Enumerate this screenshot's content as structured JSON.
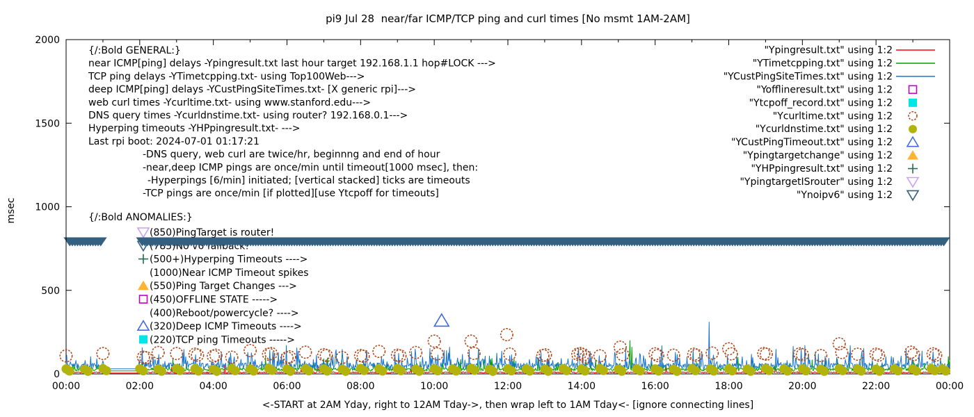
{
  "title": "pi9 Jul 28  near/far ICMP/TCP ping and curl times [No msmt 1AM-2AM]",
  "axes": {
    "ylabel": "msec",
    "xlabel": "<-START at 2AM Yday, right to 12AM Tday->, then wrap left to 1AM Tday<- [ignore connecting lines]",
    "x_ticks": [
      {
        "h": 0,
        "label": "00:00"
      },
      {
        "h": 2,
        "label": "02:00"
      },
      {
        "h": 4,
        "label": "04:00"
      },
      {
        "h": 6,
        "label": "06:00"
      },
      {
        "h": 8,
        "label": "08:00"
      },
      {
        "h": 10,
        "label": "10:00"
      },
      {
        "h": 12,
        "label": "12:00"
      },
      {
        "h": 14,
        "label": "14:00"
      },
      {
        "h": 16,
        "label": "16:00"
      },
      {
        "h": 18,
        "label": "18:00"
      },
      {
        "h": 20,
        "label": "20:00"
      },
      {
        "h": 22,
        "label": "22:00"
      },
      {
        "h": 24,
        "label": "00:00"
      }
    ],
    "y_ticks": [
      0,
      500,
      1000,
      1500,
      2000
    ],
    "x_range_hours": [
      0,
      24
    ],
    "y_range_msec": [
      0,
      2000
    ]
  },
  "legend": [
    {
      "label": "\"Ypingresult.txt\" using 1:2",
      "marker": "line",
      "color": "#ff0000"
    },
    {
      "label": "\"YTimetcpping.txt\" using 1:2",
      "marker": "line",
      "color": "#00a000"
    },
    {
      "label": "\"YCustPingSiteTimes.txt\" using 1:2",
      "marker": "line",
      "color": "#1874cd"
    },
    {
      "label": "\"Yofflineresult.txt\" using 1:2",
      "marker": "square-open",
      "color": "#c000c0"
    },
    {
      "label": "\"Ytcpoff_record.txt\" using 1:2",
      "marker": "square-filled",
      "color": "#00e6e6"
    },
    {
      "label": "\"Ycurltime.txt\" using 1:2",
      "marker": "circle-open",
      "color": "#b2491c"
    },
    {
      "label": "\"Ycurldnstime.txt\" using 1:2",
      "marker": "circle-filled",
      "color": "#b3b30e"
    },
    {
      "label": "\"YCustPingTimeout.txt\" using 1:2",
      "marker": "triangle-up-open",
      "color": "#4169e1"
    },
    {
      "label": "\"Ypingtargetchange\" using 1:2",
      "marker": "triangle-up-filled",
      "color": "#ffb433"
    },
    {
      "label": "\"YHPpingresult.txt\" using 1:2",
      "marker": "plus",
      "color": "#1f6e4e"
    },
    {
      "label": "\"YpingtargetISrouter\" using 1:2",
      "marker": "triangle-down-open",
      "color": "#c9a0f5"
    },
    {
      "label": "\"Ynoipv6\" using 1:2",
      "marker": "triangle-down-open",
      "color": "#336080"
    }
  ],
  "general_block": {
    "lines": [
      {
        "indent": 0,
        "text": "{/:Bold GENERAL:}"
      },
      {
        "indent": 0,
        "text": "near ICMP[ping] delays -Ypingresult.txt last hour target 192.168.1.1 hop#LOCK --->"
      },
      {
        "indent": 0,
        "text": "TCP ping delays -YTimetcpping.txt- using Top100Web--->"
      },
      {
        "indent": 0,
        "text": "deep ICMP[ping] delays -YCustPingSiteTimes.txt- [X generic rpi]--->"
      },
      {
        "indent": 0,
        "text": "web curl times -Ycurltime.txt- using www.stanford.edu--->"
      },
      {
        "indent": 0,
        "text": "DNS query times -Ycurldnstime.txt- using router? 192.168.0.1--->"
      },
      {
        "indent": 0,
        "text": "Hyperping timeouts -YHPpingresult.txt- --->"
      },
      {
        "indent": 0,
        "text": "Last rpi boot: 2024-07-01 01:17:21"
      },
      {
        "indent": 1,
        "text": "-DNS query, web curl are twice/hr, beginnng and end of hour"
      },
      {
        "indent": 1,
        "text": "-near,deep ICMP pings are once/min until timeout[1000 msec], then:"
      },
      {
        "indent": 2,
        "text": "-Hyperpings [6/min] initiated; [vertical stacked] ticks are timeouts"
      },
      {
        "indent": 1,
        "text": "-TCP pings are once/min [if plotted][use Ytcpoff for timeouts]"
      }
    ]
  },
  "anomalies_block": {
    "header": "{/:Bold ANOMALIES:}",
    "items": [
      {
        "marker": "triangle-down-open",
        "color": "#c9a0f5",
        "text": "(850)PingTarget is router!"
      },
      {
        "marker": "triangle-down-open",
        "color": "#336080",
        "text": "(785)No v6 fallback!"
      },
      {
        "marker": "plus",
        "color": "#1f6e4e",
        "text": "(500+)Hyperping Timeouts ---->"
      },
      {
        "marker": null,
        "color": null,
        "text": "(1000)Near ICMP Timeout spikes"
      },
      {
        "marker": "triangle-up-filled",
        "color": "#ffb433",
        "text": "(550)Ping Target Changes --->"
      },
      {
        "marker": "square-open",
        "color": "#c000c0",
        "text": "(450)OFFLINE STATE ----->"
      },
      {
        "marker": null,
        "color": null,
        "text": "(400)Reboot/powercycle? ---->"
      },
      {
        "marker": "triangle-up-open",
        "color": "#4169e1",
        "text": "(320)Deep ICMP Timeouts ---->"
      },
      {
        "marker": "square-filled",
        "color": "#00e6e6",
        "text": "(220)TCP ping Timeouts ----->"
      }
    ]
  },
  "chart_data": {
    "type": "line",
    "x_unit": "hours_of_day",
    "x_range": [
      0,
      24
    ],
    "ylim": [
      0,
      2000
    ],
    "ylabel": "msec",
    "grid": false,
    "legend_position": "top-right",
    "no_measurement_gap_hours": [
      1.05,
      1.97
    ],
    "line_series": [
      {
        "name": "Ypingresult.txt near ICMP ping",
        "color": "#ff0000",
        "baseline_msec": 5,
        "noise_msec": 8,
        "spike_probability": 0.02,
        "spike_max_msec": 45,
        "seed": 11,
        "notable_spikes": [
          [
            13.1,
            80
          ]
        ]
      },
      {
        "name": "YTimetcpping.txt TCP ping",
        "color": "#00a000",
        "baseline_msec": 18,
        "noise_msec": 18,
        "spike_probability": 0.06,
        "spike_max_msec": 70,
        "seed": 22,
        "notable_spikes": [
          [
            2.9,
            95
          ],
          [
            15.32,
            200
          ],
          [
            15.37,
            160
          ]
        ]
      },
      {
        "name": "YCustPingSiteTimes.txt deep ICMP ping",
        "color": "#1874cd",
        "baseline_msec": 30,
        "noise_msec": 35,
        "spike_probability": 0.18,
        "spike_max_msec": 110,
        "seed": 33,
        "notable_spikes": [
          [
            10.42,
            160
          ],
          [
            17.47,
            310
          ],
          [
            21.3,
            170
          ]
        ]
      }
    ],
    "scatter_series": [
      {
        "name": "Ycurltime.txt web curl times",
        "marker": "circle-open",
        "color": "#b2491c",
        "points": [
          [
            0.0,
            108
          ],
          [
            1.0,
            122
          ],
          [
            2.1,
            100
          ],
          [
            2.17,
            97
          ],
          [
            2.5,
            128
          ],
          [
            3.0,
            122
          ],
          [
            3.5,
            118
          ],
          [
            3.57,
            112
          ],
          [
            4.0,
            106
          ],
          [
            4.07,
            112
          ],
          [
            4.5,
            100
          ],
          [
            5.0,
            140
          ],
          [
            5.5,
            118
          ],
          [
            5.57,
            122
          ],
          [
            6.0,
            96
          ],
          [
            6.07,
            102
          ],
          [
            6.5,
            130
          ],
          [
            7.0,
            115
          ],
          [
            7.07,
            110
          ],
          [
            7.5,
            98
          ],
          [
            8.0,
            110
          ],
          [
            8.07,
            106
          ],
          [
            8.5,
            135
          ],
          [
            9.0,
            112
          ],
          [
            9.07,
            108
          ],
          [
            9.5,
            128
          ],
          [
            10.0,
            196
          ],
          [
            10.08,
            120
          ],
          [
            11.0,
            196
          ],
          [
            11.08,
            123
          ],
          [
            11.97,
            235
          ],
          [
            12.05,
            119
          ],
          [
            12.95,
            110
          ],
          [
            13.02,
            114
          ],
          [
            13.9,
            118
          ],
          [
            13.97,
            122
          ],
          [
            14.05,
            115
          ],
          [
            14.12,
            100
          ],
          [
            14.5,
            108
          ],
          [
            15.05,
            160
          ],
          [
            15.12,
            115
          ],
          [
            16.0,
            120
          ],
          [
            16.07,
            110
          ],
          [
            16.5,
            112
          ],
          [
            17.05,
            118
          ],
          [
            17.12,
            112
          ],
          [
            17.55,
            125
          ],
          [
            18.0,
            150
          ],
          [
            18.07,
            120
          ],
          [
            18.95,
            122
          ],
          [
            19.02,
            118
          ],
          [
            19.93,
            120
          ],
          [
            20.0,
            115
          ],
          [
            20.5,
            110
          ],
          [
            21.0,
            180
          ],
          [
            21.07,
            128
          ],
          [
            21.5,
            118
          ],
          [
            22.0,
            118
          ],
          [
            22.07,
            112
          ],
          [
            22.95,
            130
          ],
          [
            23.02,
            116
          ],
          [
            23.55,
            120
          ],
          [
            23.62,
            112
          ]
        ]
      },
      {
        "name": "Ycurldnstime.txt DNS query times",
        "marker": "circle-filled",
        "color": "#b3b30e",
        "points": [
          [
            0.0,
            30
          ],
          [
            0.5,
            28
          ],
          [
            1.0,
            32
          ],
          [
            2.0,
            31
          ],
          [
            2.5,
            29
          ],
          [
            3.0,
            33
          ],
          [
            3.5,
            30
          ],
          [
            4.0,
            28
          ],
          [
            4.5,
            32
          ],
          [
            5.0,
            30
          ],
          [
            5.5,
            34
          ],
          [
            6.0,
            29
          ],
          [
            6.5,
            31
          ],
          [
            7.0,
            30
          ],
          [
            7.5,
            28
          ],
          [
            8.0,
            33
          ],
          [
            8.5,
            30
          ],
          [
            9.0,
            32
          ],
          [
            9.5,
            29
          ],
          [
            10.0,
            31
          ],
          [
            10.5,
            30
          ],
          [
            11.0,
            34
          ],
          [
            11.5,
            28
          ],
          [
            12.0,
            31
          ],
          [
            12.5,
            30
          ],
          [
            13.0,
            29
          ],
          [
            13.5,
            32
          ],
          [
            14.0,
            30
          ],
          [
            14.5,
            33
          ],
          [
            15.0,
            29
          ],
          [
            15.5,
            31
          ],
          [
            16.0,
            30
          ],
          [
            16.5,
            28
          ],
          [
            17.0,
            32
          ],
          [
            17.5,
            30
          ],
          [
            18.0,
            31
          ],
          [
            18.5,
            29
          ],
          [
            19.0,
            33
          ],
          [
            19.5,
            30
          ],
          [
            20.0,
            31
          ],
          [
            20.5,
            28
          ],
          [
            21.0,
            32
          ],
          [
            21.5,
            30
          ],
          [
            22.0,
            29
          ],
          [
            22.5,
            31
          ],
          [
            23.0,
            30
          ],
          [
            23.5,
            32
          ],
          [
            23.8,
            30
          ]
        ]
      },
      {
        "name": "YCustPingTimeout.txt deep ICMP timeout",
        "marker": "triangle-up-open",
        "color": "#4169e1",
        "points": [
          [
            10.2,
            318
          ]
        ]
      },
      {
        "name": "Ynoipv6 no-ipv6 marker band",
        "marker": "triangle-down-filled",
        "color": "#336080",
        "band_msec": 790,
        "band_segments_hours": [
          [
            0,
            1.05
          ],
          [
            1.97,
            24
          ]
        ]
      }
    ]
  }
}
